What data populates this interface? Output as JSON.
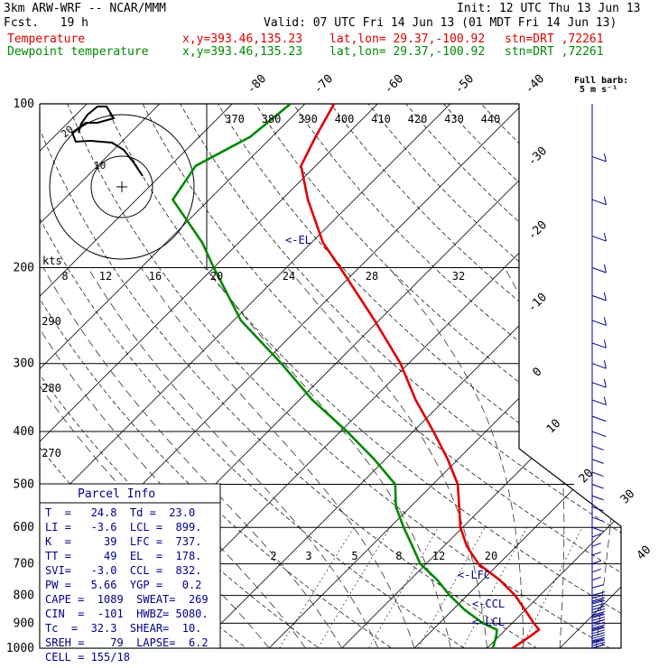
{
  "header": {
    "model": "3km ARW-WRF -- NCAR/MMM",
    "init": "Init: 12 UTC Thu 13 Jun 13",
    "fcst": "Fcst.   19 h",
    "valid": "Valid: 07 UTC Fri 14 Jun 13 (01 MDT Fri 14 Jun 13)",
    "temp_label": "Temperature",
    "dew_label": "Dewpoint temperature",
    "xy": "x,y=393.46,135.23",
    "latlon": "lat,lon= 29.37,-100.92",
    "stn": "stn=DRT ,72261",
    "barb_note_line1": "Full barb:",
    "barb_note_line2": "5 m s⁻¹",
    "hodo_units": "kts"
  },
  "parcel_info": {
    "title": "Parcel Info",
    "rows": [
      "T  =   24.8  Td =  23.0",
      "LI =   -3.6  LCL =  899.",
      "K  =     39  LFC =  737.",
      "TT =     49  EL  =  178.",
      "SVI=   -3.0  CCL =  832.",
      "PW =   5.66  YGP =   0.2",
      "CAPE =  1089  SWEAT=  269",
      "CIN  =  -101  HWBZ= 5080.",
      "Tc  =  32.3  SHEAR=  10.",
      "SREH =    79  LAPSE=  6.2",
      "CELL = 155/18"
    ]
  },
  "chart_data": {
    "type": "line",
    "title": "",
    "pressure_levels": [
      100,
      200,
      300,
      400,
      500,
      600,
      700,
      800,
      900,
      1000
    ],
    "isotherm_labels": [
      "-80",
      "-70",
      "-60",
      "-50",
      "-40",
      "-30",
      "-20",
      "-10",
      "0",
      "10",
      "20",
      "30",
      "40"
    ],
    "theta_top_labels": [
      "370",
      "380",
      "390",
      "400",
      "410",
      "420",
      "430",
      "440"
    ],
    "theta_left_labels": [
      "290",
      "280",
      "270"
    ],
    "mixing_ratio_labels": [
      "2",
      "3",
      "5",
      "8",
      "12",
      "20"
    ],
    "thetae_labels": [
      "8",
      "12",
      "16",
      "20",
      "24",
      "28",
      "32"
    ],
    "annotations": [
      "<-EL",
      "<-LFC",
      "<-CCL",
      "<-LCL"
    ],
    "colors": {
      "temperature": "#e00000",
      "dewpoint": "#008800",
      "wind": "#00008b"
    },
    "series": [
      {
        "name": "Temperature",
        "p": [
          1000,
          950,
          925,
          900,
          850,
          800,
          750,
          700,
          650,
          600,
          550,
          500,
          450,
          400,
          350,
          300,
          250,
          200,
          180,
          150,
          130,
          115,
          100
        ],
        "t": [
          23.5,
          24.3,
          24.6,
          23.0,
          19.9,
          16.6,
          12.4,
          7.2,
          3.2,
          -0.3,
          -3.3,
          -6.6,
          -11.4,
          -17.2,
          -24.0,
          -31.1,
          -40.6,
          -52.6,
          -58.4,
          -66.4,
          -72.0,
          -74.0,
          -76.0
        ]
      },
      {
        "name": "Dewpoint temperature",
        "p": [
          1000,
          950,
          925,
          900,
          850,
          800,
          750,
          700,
          650,
          600,
          550,
          500,
          450,
          400,
          350,
          300,
          250,
          200,
          180,
          150,
          130,
          115,
          100
        ],
        "t": [
          20.8,
          19.6,
          18.8,
          16.0,
          11.6,
          7.6,
          3.8,
          -0.8,
          -4.3,
          -8.1,
          -12.0,
          -15.2,
          -21.5,
          -29.1,
          -38.2,
          -47.5,
          -59.0,
          -70.0,
          -75.0,
          -85.0,
          -86.5,
          -83.0,
          -82.0
        ]
      }
    ]
  }
}
